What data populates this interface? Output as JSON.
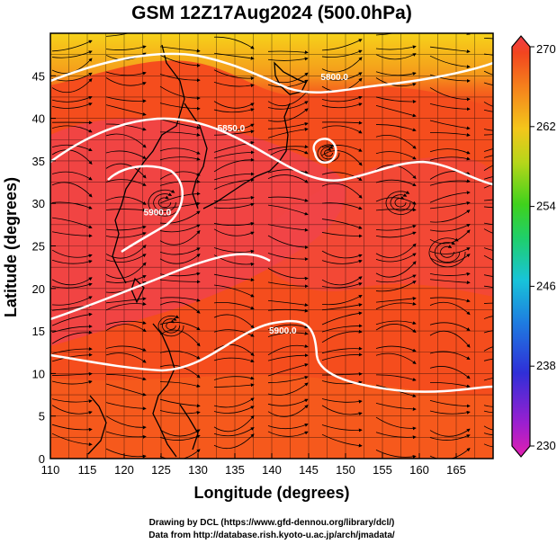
{
  "title": "GSM 12Z17Aug2024 (500.0hPa)",
  "xlabel": "Longitude (degrees)",
  "ylabel": "Latitude  (degrees)",
  "credit_line1": "Drawing by DCL (https://www.gfd-dennou.org/library/dcl/)",
  "credit_line2": "Data from http://database.rish.kyoto-u.ac.jp/arch/jmadata/",
  "x_ticks": [
    "110",
    "115",
    "120",
    "125",
    "130",
    "135",
    "140",
    "145",
    "150",
    "155",
    "160",
    "165"
  ],
  "y_ticks": [
    "0",
    "5",
    "10",
    "15",
    "20",
    "25",
    "30",
    "35",
    "40",
    "45"
  ],
  "colorbar_ticks": [
    "230",
    "238",
    "246",
    "254",
    "262",
    "270"
  ],
  "contour_labels": [
    {
      "text": "5800.0",
      "lon": 148.5,
      "lat": 44.5
    },
    {
      "text": "5850.0",
      "lon": 134.5,
      "lat": 38.5
    },
    {
      "text": "5900.0",
      "lon": 124.5,
      "lat": 28.6
    },
    {
      "text": "5900.0",
      "lon": 141.5,
      "lat": 14.7
    }
  ],
  "colors": {
    "warm_core": "#f0404a",
    "background": "#f54a1f",
    "cold_north": "#f5c21a",
    "contour": "#ffffff",
    "streamline": "#000000",
    "coast": "#000000"
  },
  "map_extent": {
    "lon_min": 110,
    "lon_max": 170,
    "lat_min": 0,
    "lat_max": 50
  }
}
